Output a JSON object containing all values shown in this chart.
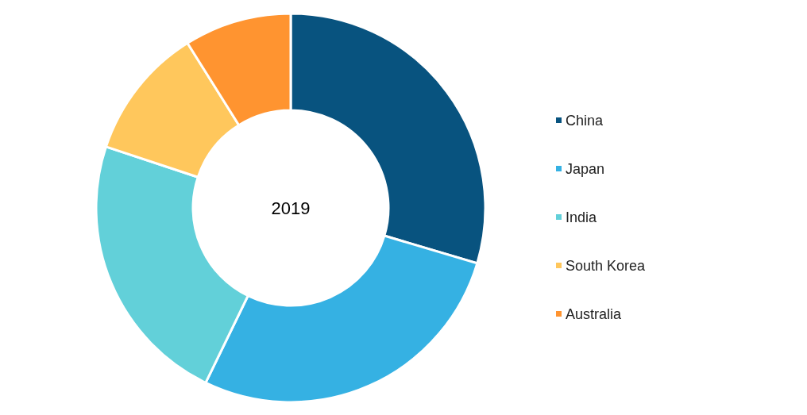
{
  "chart_data": {
    "type": "donut",
    "title": "2019",
    "categories": [
      "China",
      "Japan",
      "India",
      "South Korea",
      "Australia"
    ],
    "values": [
      29.6,
      27.6,
      22.9,
      11.0,
      8.9
    ],
    "colors": [
      "#08537f",
      "#35b1e3",
      "#62d0d9",
      "#ffc75c",
      "#ff9430"
    ],
    "legend": "right"
  }
}
